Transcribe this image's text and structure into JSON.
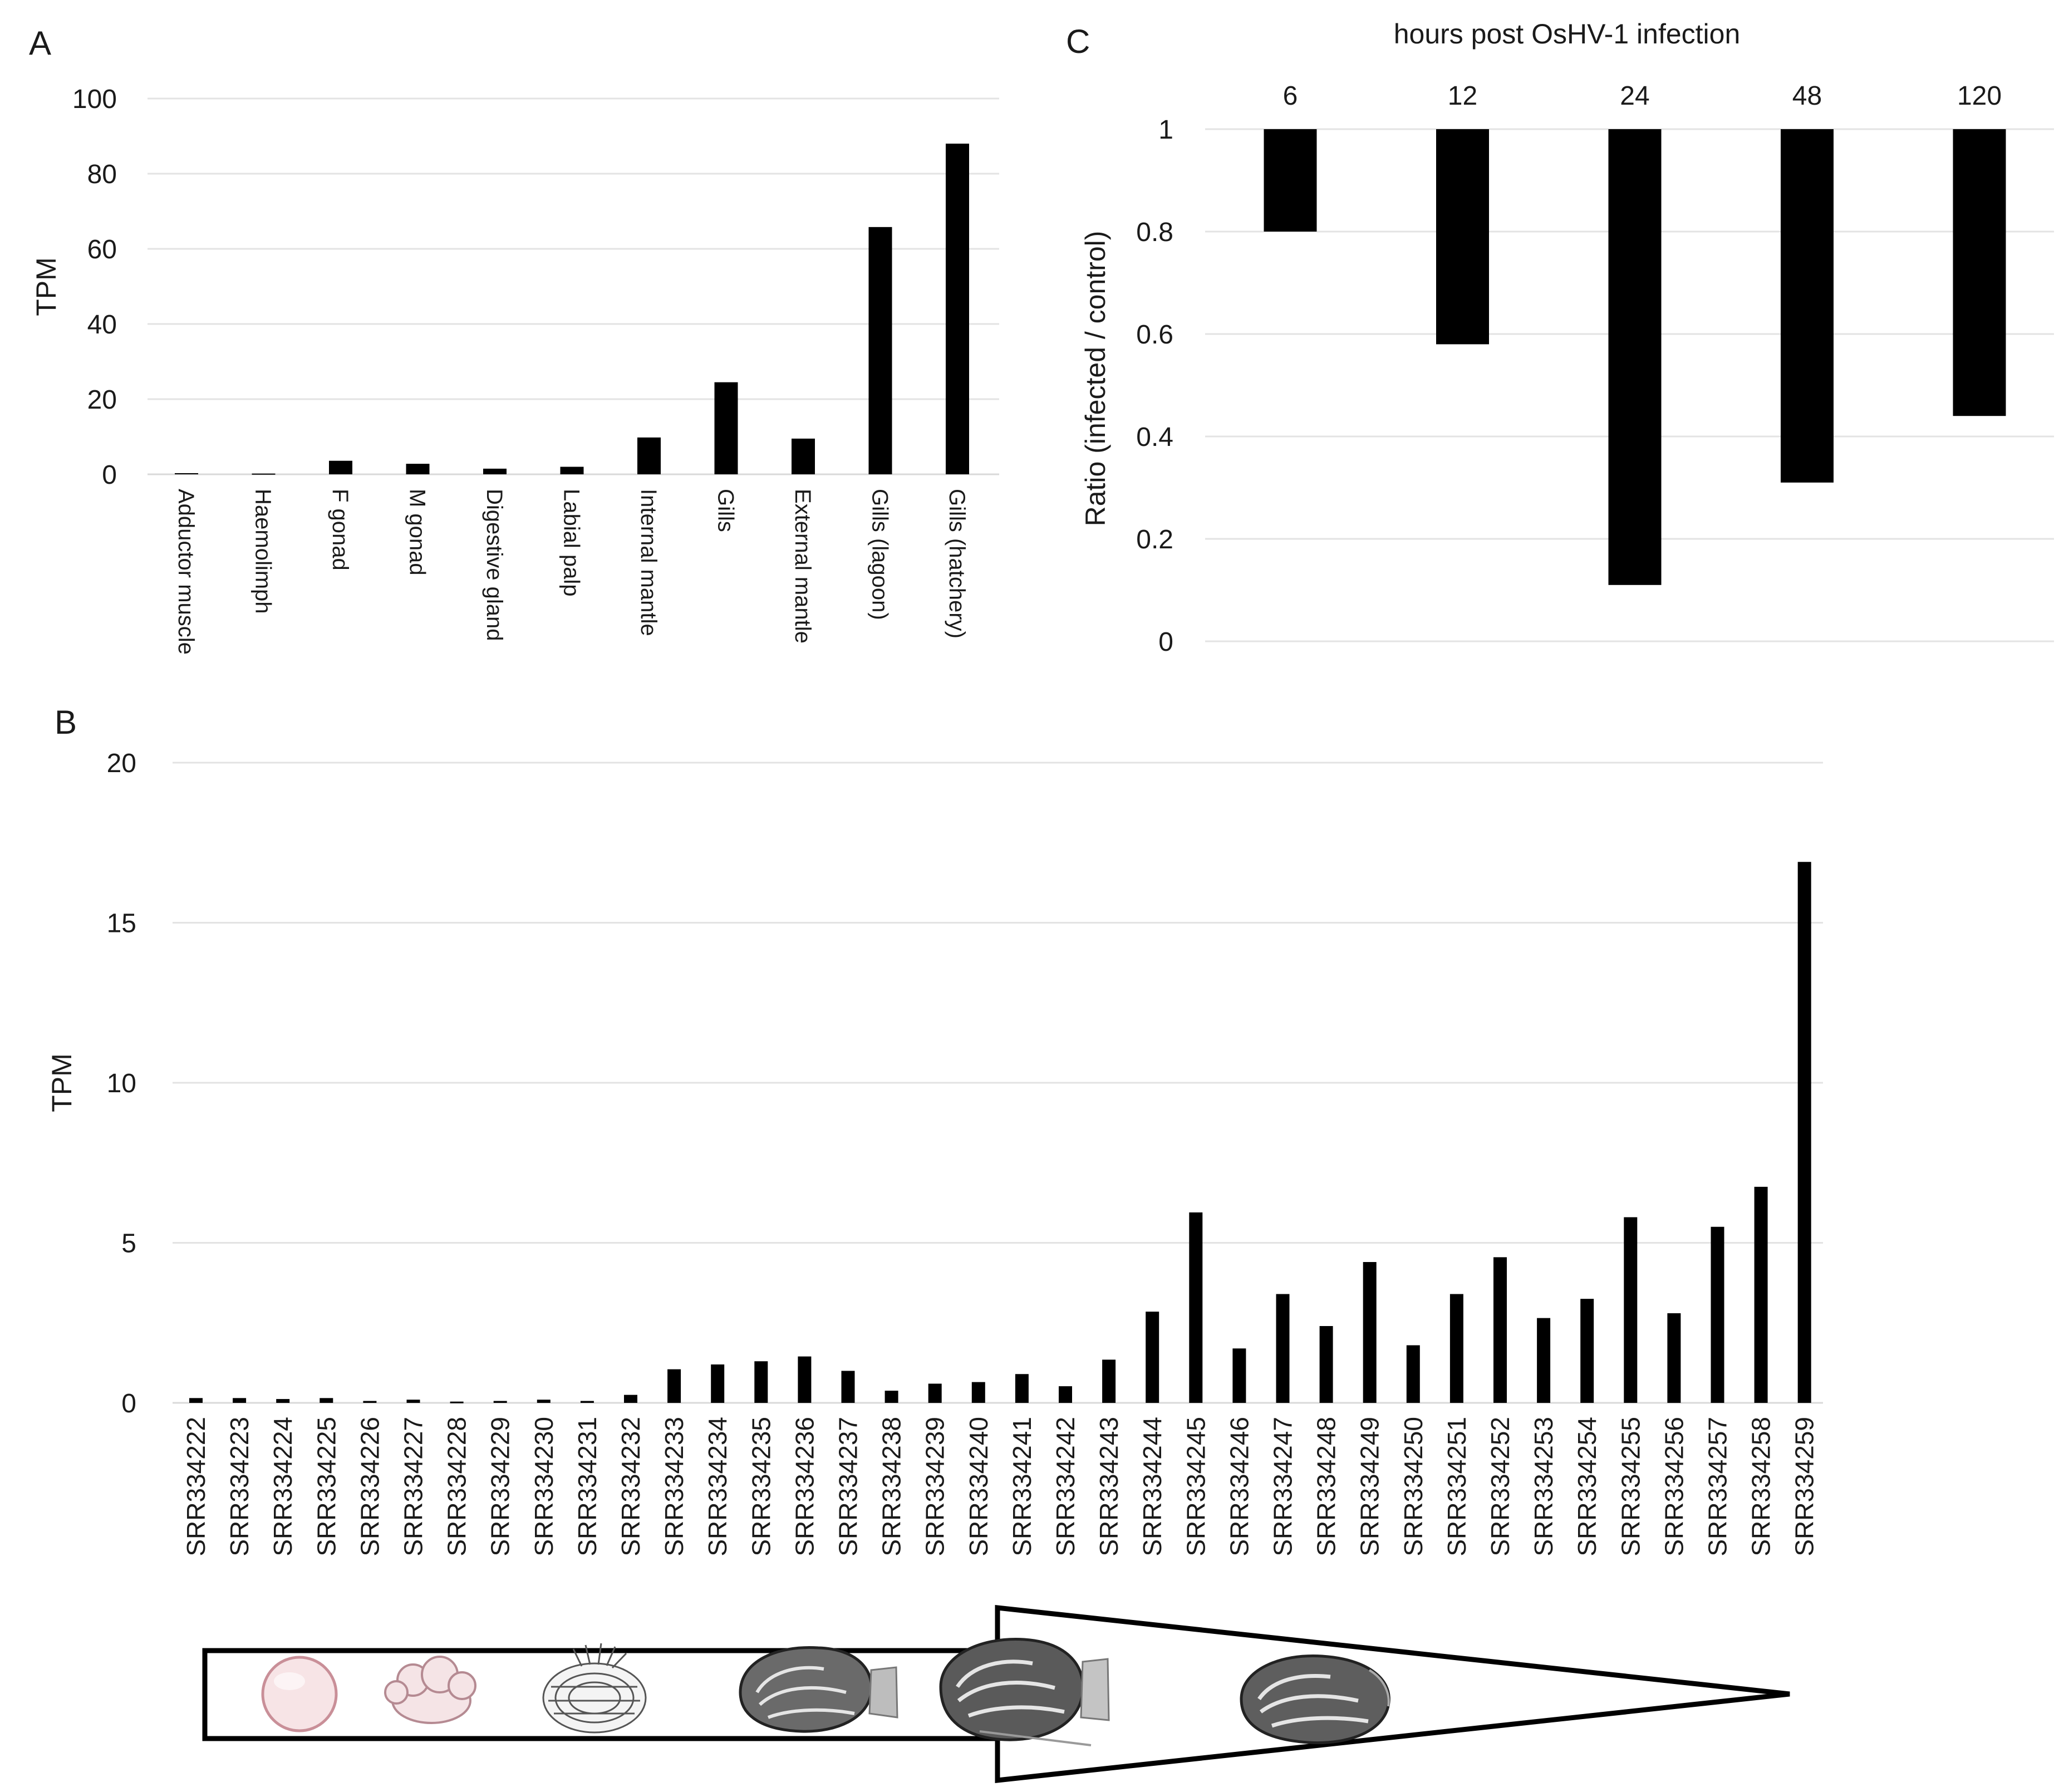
{
  "chart_data": [
    {
      "panel": "A",
      "type": "bar",
      "title": "",
      "xlabel": "",
      "ylabel": "TPM",
      "ylim": [
        0,
        100
      ],
      "yticks": [
        0,
        20,
        40,
        60,
        80,
        100
      ],
      "grid": true,
      "categories": [
        "Adductor muscle",
        "Haemolimph",
        "F gonad",
        "M gonad",
        "Digestive gland",
        "Labial palp",
        "Internal mantle",
        "Gills",
        "External mantle",
        "Gills (lagoon)",
        "Gills (hatchery)"
      ],
      "values": [
        0.3,
        0.2,
        3.6,
        2.8,
        1.5,
        2.0,
        9.8,
        24.5,
        9.5,
        65.8,
        88.0
      ]
    },
    {
      "panel": "B",
      "type": "bar",
      "title": "",
      "xlabel": "",
      "ylabel": "TPM",
      "ylim": [
        0,
        20
      ],
      "yticks": [
        0,
        5,
        10,
        15,
        20
      ],
      "grid": true,
      "categories": [
        "SRR334222",
        "SRR334223",
        "SRR334224",
        "SRR334225",
        "SRR334226",
        "SRR334227",
        "SRR334228",
        "SRR334229",
        "SRR334230",
        "SRR334231",
        "SRR334232",
        "SRR334233",
        "SRR334234",
        "SRR334235",
        "SRR334236",
        "SRR334237",
        "SRR334238",
        "SRR334239",
        "SRR334240",
        "SRR334241",
        "SRR334242",
        "SRR334243",
        "SRR334244",
        "SRR334245",
        "SRR334246",
        "SRR334247",
        "SRR334248",
        "SRR334249",
        "SRR334250",
        "SRR334251",
        "SRR334252",
        "SRR334253",
        "SRR334254",
        "SRR334255",
        "SRR334256",
        "SRR334257",
        "SRR334258",
        "SRR334259"
      ],
      "values": [
        0.15,
        0.15,
        0.12,
        0.15,
        0.06,
        0.1,
        0.04,
        0.06,
        0.1,
        0.06,
        0.25,
        1.05,
        1.2,
        1.3,
        1.45,
        1.0,
        0.38,
        0.6,
        0.65,
        0.9,
        0.52,
        1.35,
        2.85,
        5.95,
        1.7,
        3.4,
        2.4,
        4.4,
        1.8,
        3.4,
        4.55,
        2.65,
        3.25,
        5.8,
        2.8,
        5.5,
        6.75,
        16.9
      ]
    },
    {
      "panel": "C",
      "type": "bar",
      "title": "hours post OsHV-1 infection",
      "xlabel": "",
      "ylabel": "Ratio (infected  / control)",
      "ylim": [
        0,
        1
      ],
      "yticks": [
        0,
        0.2,
        0.4,
        0.6,
        0.8,
        1
      ],
      "grid": true,
      "categories": [
        "6",
        "12",
        "24",
        "48",
        "120"
      ],
      "values": [
        0.8,
        0.58,
        0.11,
        0.31,
        0.44
      ]
    }
  ],
  "figure": {
    "development_stage_icons": [
      "egg-icon",
      "embryo-icon",
      "larva-icon",
      "spat-icon",
      "juvenile-oyster-icon",
      "adult-oyster-icon"
    ]
  }
}
